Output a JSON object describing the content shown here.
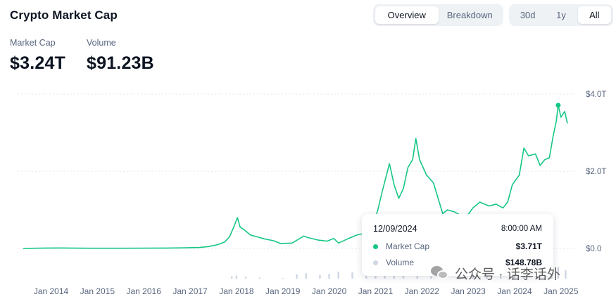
{
  "header": {
    "title": "Crypto Market Cap",
    "view_tabs": [
      {
        "label": "Overview",
        "active": true
      },
      {
        "label": "Breakdown",
        "active": false
      }
    ],
    "range_tabs": [
      {
        "label": "30d",
        "active": false
      },
      {
        "label": "1y",
        "active": false
      },
      {
        "label": "All",
        "active": true
      }
    ]
  },
  "stats": {
    "market_cap_label": "Market Cap",
    "market_cap_value": "$3.24T",
    "volume_label": "Volume",
    "volume_value": "$91.23B"
  },
  "tooltip": {
    "date": "12/09/2024",
    "time": "8:00:00 AM",
    "market_cap_label": "Market Cap",
    "market_cap_value": "$3.71T",
    "volume_label": "Volume",
    "volume_value": "$148.78B"
  },
  "watermark": {
    "text": "公众号 · 话李话外"
  },
  "colors": {
    "line": "#16c784",
    "volume_bar": "#cfd6e4",
    "grid": "#e0e4ea",
    "axis_text": "#58667e",
    "volume_dot": "#cfd6e4"
  },
  "chart_data": {
    "type": "line",
    "title": "",
    "xlabel": "",
    "ylabel": "",
    "x_ticks": [
      "Jan 2014",
      "Jan 2015",
      "Jan 2016",
      "Jan 2017",
      "Jan 2018",
      "Jan 2019",
      "Jan 2020",
      "Jan 2021",
      "Jan 2022",
      "Jan 2023",
      "Jan 2024",
      "Jan 2025"
    ],
    "y_ticks": [
      {
        "value": 0,
        "label": "$0.0"
      },
      {
        "value": 2,
        "label": "$2.0T"
      },
      {
        "value": 4,
        "label": "$4.0T"
      }
    ],
    "ylim": [
      0,
      4
    ],
    "xlim": [
      2013.4,
      2025.2
    ],
    "grid": true,
    "series": [
      {
        "name": "Market Cap",
        "unit": "trillion USD",
        "points": [
          [
            2013.4,
            0.002
          ],
          [
            2013.9,
            0.01
          ],
          [
            2014.2,
            0.012
          ],
          [
            2014.6,
            0.008
          ],
          [
            2015.0,
            0.005
          ],
          [
            2015.6,
            0.005
          ],
          [
            2016.0,
            0.007
          ],
          [
            2016.5,
            0.011
          ],
          [
            2016.9,
            0.017
          ],
          [
            2017.2,
            0.025
          ],
          [
            2017.4,
            0.05
          ],
          [
            2017.6,
            0.1
          ],
          [
            2017.75,
            0.17
          ],
          [
            2017.85,
            0.3
          ],
          [
            2017.95,
            0.58
          ],
          [
            2018.02,
            0.8
          ],
          [
            2018.08,
            0.55
          ],
          [
            2018.15,
            0.5
          ],
          [
            2018.3,
            0.35
          ],
          [
            2018.45,
            0.3
          ],
          [
            2018.6,
            0.25
          ],
          [
            2018.8,
            0.2
          ],
          [
            2018.95,
            0.13
          ],
          [
            2019.2,
            0.14
          ],
          [
            2019.45,
            0.32
          ],
          [
            2019.55,
            0.28
          ],
          [
            2019.75,
            0.22
          ],
          [
            2019.95,
            0.19
          ],
          [
            2020.1,
            0.26
          ],
          [
            2020.2,
            0.14
          ],
          [
            2020.4,
            0.25
          ],
          [
            2020.6,
            0.35
          ],
          [
            2020.8,
            0.4
          ],
          [
            2020.95,
            0.6
          ],
          [
            2021.05,
            1.0
          ],
          [
            2021.15,
            1.5
          ],
          [
            2021.3,
            2.2
          ],
          [
            2021.4,
            1.65
          ],
          [
            2021.5,
            1.3
          ],
          [
            2021.6,
            1.55
          ],
          [
            2021.7,
            2.1
          ],
          [
            2021.8,
            2.3
          ],
          [
            2021.87,
            2.85
          ],
          [
            2021.95,
            2.3
          ],
          [
            2022.1,
            1.9
          ],
          [
            2022.25,
            1.7
          ],
          [
            2022.35,
            1.3
          ],
          [
            2022.45,
            0.9
          ],
          [
            2022.55,
            1.0
          ],
          [
            2022.7,
            0.95
          ],
          [
            2022.85,
            0.85
          ],
          [
            2022.95,
            0.8
          ],
          [
            2023.1,
            1.05
          ],
          [
            2023.25,
            1.2
          ],
          [
            2023.45,
            1.1
          ],
          [
            2023.6,
            1.15
          ],
          [
            2023.75,
            1.05
          ],
          [
            2023.85,
            1.2
          ],
          [
            2023.95,
            1.65
          ],
          [
            2024.1,
            1.9
          ],
          [
            2024.2,
            2.6
          ],
          [
            2024.3,
            2.4
          ],
          [
            2024.45,
            2.45
          ],
          [
            2024.55,
            2.15
          ],
          [
            2024.65,
            2.3
          ],
          [
            2024.75,
            2.35
          ],
          [
            2024.83,
            2.9
          ],
          [
            2024.9,
            3.3
          ],
          [
            2024.94,
            3.71
          ],
          [
            2025.0,
            3.4
          ],
          [
            2025.08,
            3.55
          ],
          [
            2025.14,
            3.24
          ]
        ]
      },
      {
        "name": "Volume",
        "unit": "billion USD",
        "points": [
          [
            2017.9,
            30
          ],
          [
            2018.0,
            40
          ],
          [
            2018.2,
            25
          ],
          [
            2018.5,
            15
          ],
          [
            2019.0,
            10
          ],
          [
            2019.3,
            55
          ],
          [
            2019.5,
            70
          ],
          [
            2019.8,
            50
          ],
          [
            2020.0,
            60
          ],
          [
            2020.2,
            90
          ],
          [
            2020.5,
            80
          ],
          [
            2020.8,
            100
          ],
          [
            2021.0,
            180
          ],
          [
            2021.2,
            200
          ],
          [
            2021.4,
            250
          ],
          [
            2021.6,
            150
          ],
          [
            2021.9,
            130
          ],
          [
            2022.2,
            120
          ],
          [
            2022.5,
            110
          ],
          [
            2022.8,
            90
          ],
          [
            2023.1,
            70
          ],
          [
            2023.4,
            60
          ],
          [
            2023.7,
            55
          ],
          [
            2024.0,
            90
          ],
          [
            2024.2,
            130
          ],
          [
            2024.5,
            100
          ],
          [
            2024.8,
            120
          ],
          [
            2024.94,
            148.78
          ],
          [
            2025.1,
            110
          ]
        ]
      }
    ],
    "highlight": {
      "x": 2024.94,
      "y": 3.71,
      "label": "12/09/2024"
    }
  }
}
